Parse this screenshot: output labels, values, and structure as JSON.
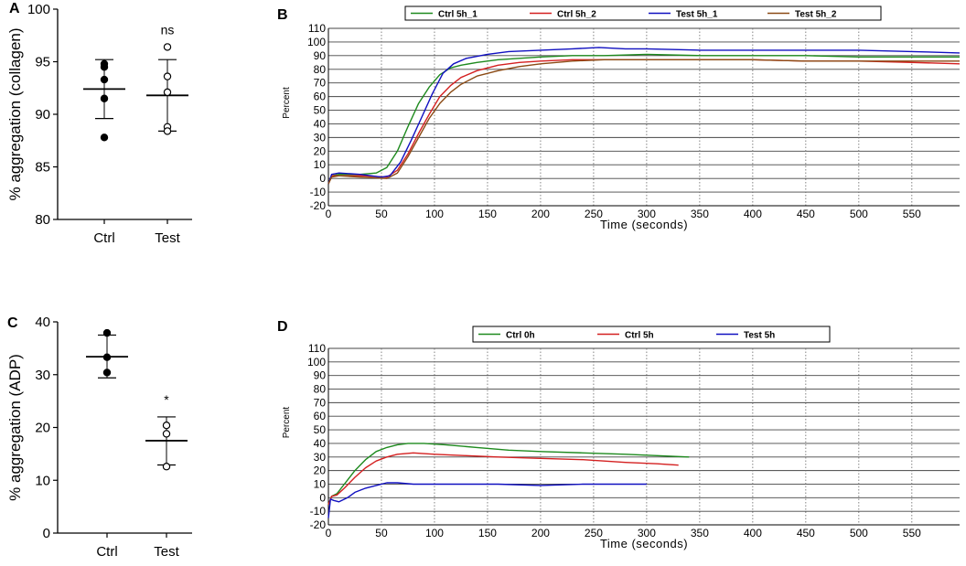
{
  "chart_data": [
    {
      "panel": "A",
      "type": "scatter",
      "ylabel": "% aggregation  (collagen)",
      "ylim": [
        80,
        100
      ],
      "yticks": [
        80,
        85,
        90,
        95,
        100
      ],
      "categories": [
        "Ctrl",
        "Test"
      ],
      "groups": [
        {
          "name": "Ctrl",
          "marker": "filled",
          "points": [
            94.8,
            94.5,
            93.3,
            91.5,
            87.8
          ],
          "mean": 92.4,
          "sd_low": 89.6,
          "sd_high": 95.2
        },
        {
          "name": "Test",
          "marker": "open",
          "points": [
            96.4,
            93.6,
            92.1,
            88.8,
            88.4
          ],
          "mean": 91.8,
          "sd_low": 88.4,
          "sd_high": 95.2
        }
      ],
      "annotation": {
        "group": "Test",
        "text": "ns"
      }
    },
    {
      "panel": "B",
      "type": "line",
      "xlabel": "Time (seconds)",
      "ylabel": "Percent",
      "xlim": [
        0,
        595
      ],
      "ylim": [
        -20,
        110
      ],
      "xticks": [
        0,
        50,
        100,
        150,
        200,
        250,
        300,
        350,
        400,
        450,
        500,
        550
      ],
      "yticks": [
        -20,
        -10,
        0,
        10,
        20,
        30,
        40,
        50,
        60,
        70,
        80,
        90,
        100,
        110
      ],
      "grid": "horizontal solid, vertical dotted",
      "legend": "top",
      "series": [
        {
          "name": "Ctrl 5h_1",
          "color": "#1e8a1e",
          "x": [
            0,
            3,
            10,
            30,
            45,
            55,
            65,
            75,
            85,
            95,
            105,
            115,
            125,
            140,
            160,
            180,
            200,
            230,
            260,
            300,
            350,
            400,
            450,
            500,
            550,
            595
          ],
          "y": [
            -4,
            2,
            3,
            3,
            4,
            8,
            20,
            38,
            55,
            67,
            76,
            81,
            83,
            85,
            87,
            88,
            89,
            90,
            90,
            91,
            90,
            90,
            90,
            89,
            89,
            89
          ]
        },
        {
          "name": "Ctrl 5h_2",
          "color": "#d42020",
          "x": [
            0,
            3,
            10,
            30,
            55,
            65,
            75,
            85,
            95,
            105,
            115,
            125,
            140,
            160,
            180,
            200,
            230,
            260,
            300,
            350,
            400,
            450,
            500,
            550,
            595
          ],
          "y": [
            -4,
            2,
            2,
            2,
            1,
            6,
            18,
            33,
            47,
            60,
            68,
            74,
            79,
            83,
            85,
            86,
            87,
            87,
            87,
            87,
            87,
            86,
            86,
            85,
            84
          ]
        },
        {
          "name": "Test 5h_1",
          "color": "#1010c0",
          "x": [
            0,
            3,
            10,
            30,
            50,
            58,
            68,
            78,
            88,
            98,
            108,
            118,
            130,
            150,
            170,
            200,
            230,
            255,
            280,
            300,
            350,
            400,
            450,
            500,
            550,
            595
          ],
          "y": [
            -4,
            3,
            4,
            3,
            1,
            2,
            12,
            28,
            45,
            62,
            77,
            84,
            88,
            91,
            93,
            94,
            95,
            96,
            95,
            95,
            94,
            94,
            94,
            94,
            93,
            92
          ]
        },
        {
          "name": "Test 5h_2",
          "color": "#8b4a14",
          "x": [
            0,
            3,
            10,
            30,
            55,
            65,
            75,
            85,
            95,
            105,
            115,
            125,
            140,
            160,
            180,
            200,
            230,
            260,
            300,
            350,
            400,
            450,
            500,
            550,
            595
          ],
          "y": [
            -4,
            1,
            2,
            1,
            0,
            4,
            16,
            30,
            44,
            55,
            63,
            69,
            75,
            79,
            82,
            84,
            86,
            87,
            87,
            87,
            87,
            86,
            86,
            86,
            86
          ]
        }
      ]
    },
    {
      "panel": "C",
      "type": "scatter",
      "ylabel": "% aggregation  (ADP)",
      "ylim": [
        0,
        40
      ],
      "yticks": [
        0,
        10,
        20,
        30,
        40
      ],
      "categories": [
        "Ctrl",
        "Test"
      ],
      "groups": [
        {
          "name": "Ctrl",
          "marker": "filled",
          "points": [
            37.9,
            33.3,
            30.4
          ],
          "mean": 33.4,
          "sd_low": 29.4,
          "sd_high": 37.5
        },
        {
          "name": "Test",
          "marker": "open",
          "points": [
            20.4,
            18.8,
            12.6
          ],
          "mean": 17.5,
          "sd_low": 12.9,
          "sd_high": 22.0
        }
      ],
      "annotation": {
        "group": "Test",
        "text": "*"
      }
    },
    {
      "panel": "D",
      "type": "line",
      "xlabel": "Time (seconds)",
      "ylabel": "Percent",
      "xlim": [
        0,
        595
      ],
      "ylim": [
        -20,
        110
      ],
      "xticks": [
        0,
        50,
        100,
        150,
        200,
        250,
        300,
        350,
        400,
        450,
        500,
        550
      ],
      "yticks": [
        -20,
        -10,
        0,
        10,
        20,
        30,
        40,
        50,
        60,
        70,
        80,
        90,
        100,
        110
      ],
      "grid": "horizontal solid, vertical dotted",
      "legend": "top",
      "series": [
        {
          "name": "Ctrl 0h",
          "color": "#1e8a1e",
          "x": [
            0,
            3,
            8,
            15,
            25,
            35,
            45,
            55,
            65,
            75,
            90,
            110,
            140,
            170,
            200,
            240,
            280,
            310,
            340
          ],
          "y": [
            -5,
            1,
            3,
            10,
            20,
            28,
            34,
            37,
            39,
            40,
            40,
            39,
            37,
            35,
            34,
            33,
            32,
            31,
            30
          ]
        },
        {
          "name": "Ctrl 5h",
          "color": "#d42020",
          "x": [
            0,
            3,
            8,
            15,
            25,
            35,
            45,
            55,
            65,
            80,
            100,
            130,
            160,
            200,
            240,
            280,
            310,
            330
          ],
          "y": [
            -5,
            1,
            2,
            7,
            15,
            22,
            27,
            30,
            32,
            33,
            32,
            31,
            30,
            29,
            28,
            26,
            25,
            24
          ]
        },
        {
          "name": "Test 5h",
          "color": "#1010c0",
          "x": [
            0,
            2,
            5,
            10,
            18,
            25,
            35,
            45,
            55,
            65,
            80,
            100,
            130,
            160,
            200,
            240,
            280,
            300
          ],
          "y": [
            -15,
            -1,
            -2,
            -3,
            0,
            4,
            7,
            9,
            11,
            11,
            10,
            10,
            10,
            10,
            9,
            10,
            10,
            10
          ]
        }
      ]
    }
  ]
}
